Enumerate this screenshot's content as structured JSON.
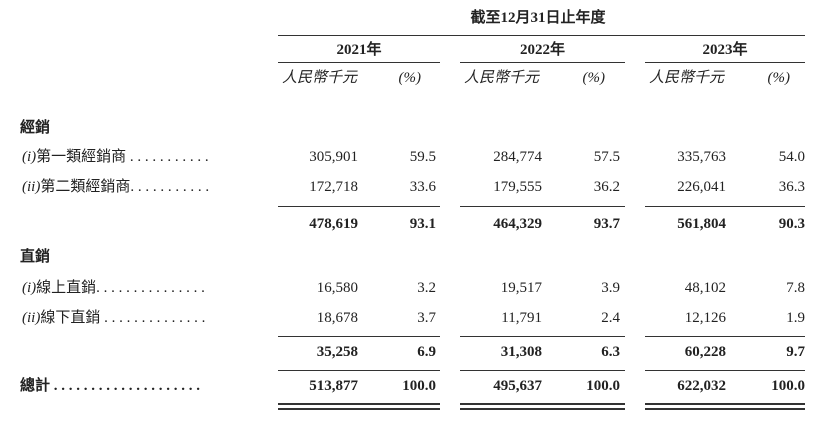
{
  "header": {
    "period": "截至12月31日止年度",
    "columns": [
      {
        "year": "2021年",
        "amount_unit": "人民幣千元",
        "pct_unit": "(%)"
      },
      {
        "year": "2022年",
        "amount_unit": "人民幣千元",
        "pct_unit": "(%)"
      },
      {
        "year": "2023年",
        "amount_unit": "人民幣千元",
        "pct_unit": "(%)"
      }
    ]
  },
  "sections": [
    {
      "title": "經銷",
      "items": [
        {
          "prefix": "(i)",
          "label": "第一類經銷商 . . . . . . . . . . .",
          "values": [
            "305,901",
            "59.5",
            "284,774",
            "57.5",
            "335,763",
            "54.0"
          ]
        },
        {
          "prefix": "(ii)",
          "label": "第二類經銷商. . . . . . . . . . .",
          "values": [
            "172,718",
            "33.6",
            "179,555",
            "36.2",
            "226,041",
            "36.3"
          ]
        }
      ],
      "subtotal": [
        "478,619",
        "93.1",
        "464,329",
        "93.7",
        "561,804",
        "90.3"
      ]
    },
    {
      "title": "直銷",
      "items": [
        {
          "prefix": "(i)",
          "label": "線上直銷. . . . . . . . . . . . . . .",
          "values": [
            "16,580",
            "3.2",
            "19,517",
            "3.9",
            "48,102",
            "7.8"
          ]
        },
        {
          "prefix": "(ii)",
          "label": "線下直銷 . . . . . . . . . . . . . .",
          "values": [
            "18,678",
            "3.7",
            "11,791",
            "2.4",
            "12,126",
            "1.9"
          ]
        }
      ],
      "subtotal": [
        "35,258",
        "6.9",
        "31,308",
        "6.3",
        "60,228",
        "9.7"
      ]
    }
  ],
  "total": {
    "label": "總計 . . . . . . . . . . . . . . . . . . . .",
    "values": [
      "513,877",
      "100.0",
      "495,637",
      "100.0",
      "622,032",
      "100.0"
    ]
  }
}
